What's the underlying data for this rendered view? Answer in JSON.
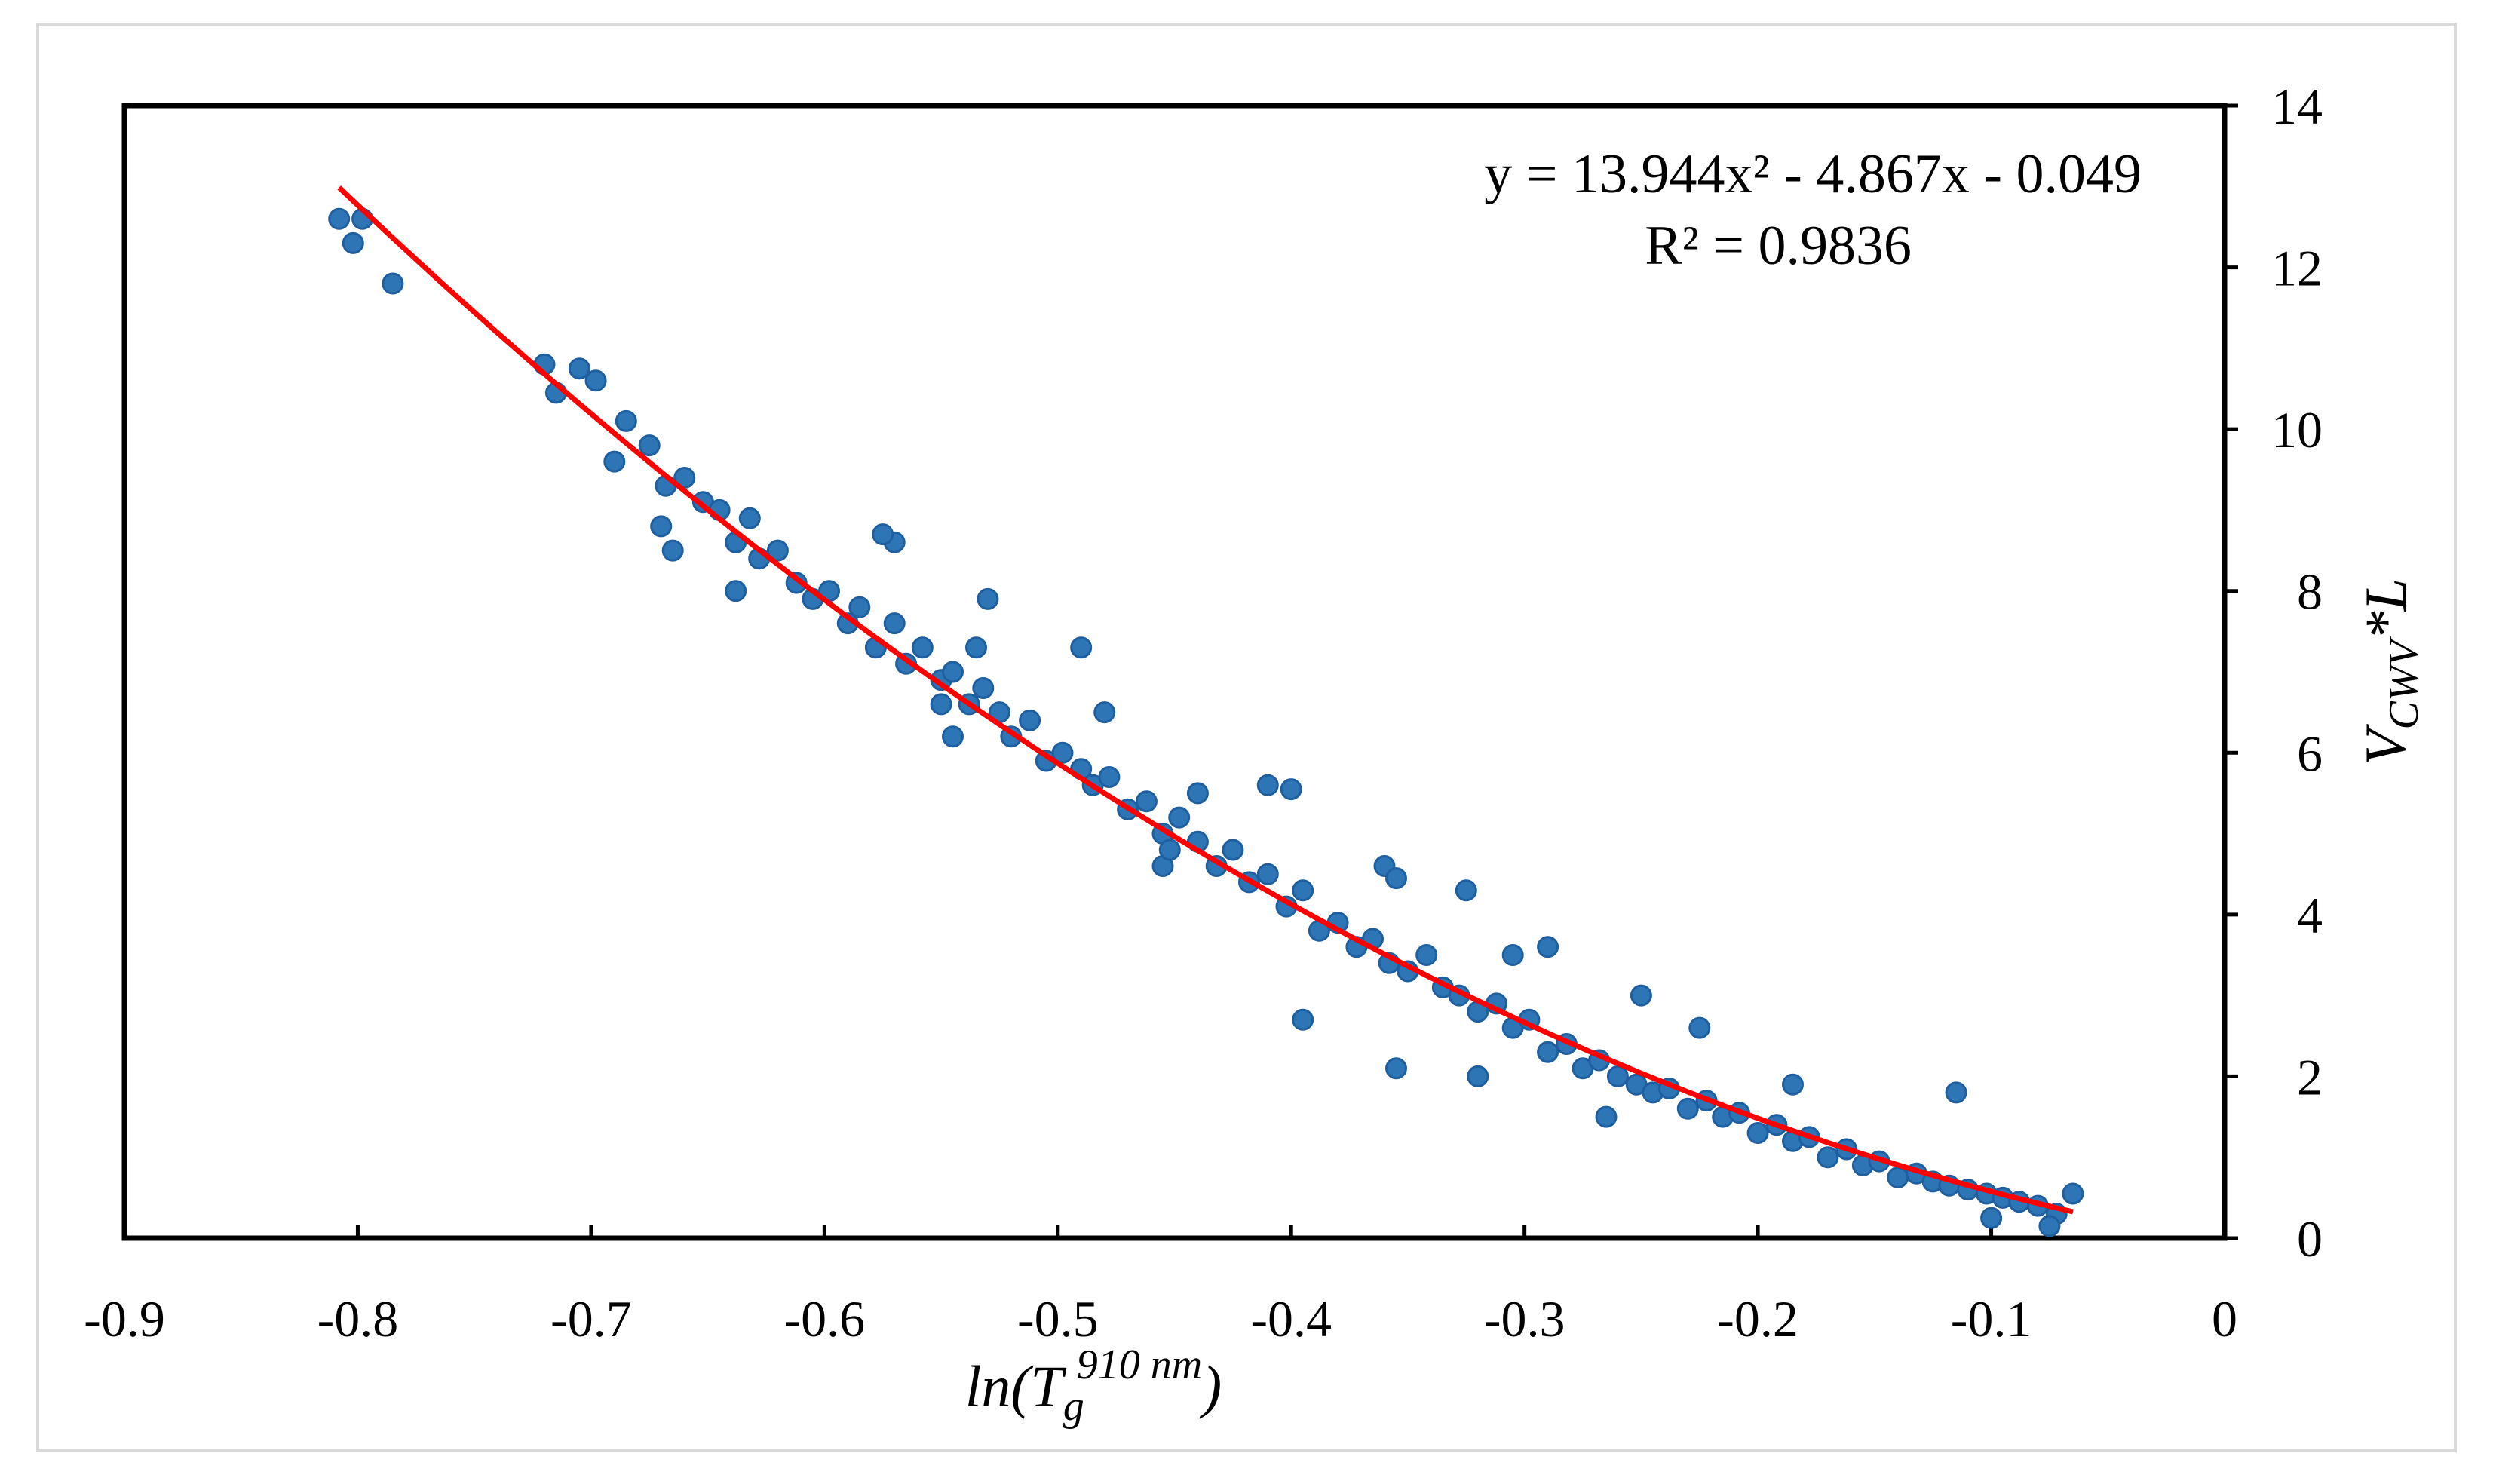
{
  "chart_data": {
    "type": "scatter",
    "title": "",
    "xlabel": "ln(T_g^910 nm)",
    "xlabel_parts": {
      "prefix": "ln(T",
      "subscript": "g",
      "superscript": "910 nm",
      "suffix": ")"
    },
    "ylabel": "V_CWV*L",
    "ylabel_parts": {
      "main": "V",
      "subscript": "CWV",
      "suffix": "*L"
    },
    "xlim": [
      -0.9,
      0
    ],
    "ylim": [
      0,
      14
    ],
    "x_ticks": [
      -0.9,
      -0.8,
      -0.7,
      -0.6,
      -0.5,
      -0.4,
      -0.3,
      -0.2,
      -0.1,
      0
    ],
    "x_tick_labels": [
      "-0.9",
      "-0.8",
      "-0.7",
      "-0.6",
      "-0.5",
      "-0.4",
      "-0.3",
      "-0.2",
      "-0.1",
      "0"
    ],
    "y_ticks": [
      0,
      2,
      4,
      6,
      8,
      10,
      12,
      14
    ],
    "y_tick_labels": [
      "0",
      "2",
      "4",
      "6",
      "8",
      "10",
      "12",
      "14"
    ],
    "y_axis_side": "right",
    "grid": false,
    "legend": "none",
    "series": [
      {
        "name": "observations",
        "kind": "scatter",
        "color": "#2E75B6",
        "edge_color": "#1F5FA0",
        "x": [
          -0.808,
          -0.802,
          -0.798,
          -0.785,
          -0.72,
          -0.715,
          -0.705,
          -0.698,
          -0.69,
          -0.685,
          -0.675,
          -0.668,
          -0.66,
          -0.652,
          -0.645,
          -0.638,
          -0.632,
          -0.628,
          -0.62,
          -0.612,
          -0.605,
          -0.598,
          -0.59,
          -0.585,
          -0.578,
          -0.57,
          -0.565,
          -0.558,
          -0.55,
          -0.545,
          -0.538,
          -0.532,
          -0.525,
          -0.52,
          -0.512,
          -0.505,
          -0.498,
          -0.49,
          -0.485,
          -0.478,
          -0.47,
          -0.462,
          -0.455,
          -0.448,
          -0.44,
          -0.432,
          -0.425,
          -0.418,
          -0.41,
          -0.402,
          -0.395,
          -0.388,
          -0.38,
          -0.372,
          -0.365,
          -0.358,
          -0.35,
          -0.342,
          -0.335,
          -0.328,
          -0.32,
          -0.312,
          -0.305,
          -0.298,
          -0.29,
          -0.282,
          -0.275,
          -0.268,
          -0.26,
          -0.252,
          -0.245,
          -0.238,
          -0.23,
          -0.222,
          -0.215,
          -0.208,
          -0.2,
          -0.192,
          -0.185,
          -0.178,
          -0.17,
          -0.162,
          -0.155,
          -0.148,
          -0.14,
          -0.132,
          -0.125,
          -0.118,
          -0.11,
          -0.102,
          -0.095,
          -0.088,
          -0.08,
          -0.072,
          -0.065,
          -0.57,
          -0.575,
          -0.535,
          -0.53,
          -0.49,
          -0.48,
          -0.41,
          -0.4,
          -0.36,
          -0.355,
          -0.325,
          -0.305,
          -0.29,
          -0.25,
          -0.225,
          -0.185,
          -0.115,
          -0.395,
          -0.355,
          -0.55,
          -0.545,
          -0.455,
          -0.452,
          -0.44,
          -0.638,
          -0.665,
          -0.67,
          -0.32,
          -0.265,
          -0.1,
          -0.075
        ],
        "y": [
          12.6,
          12.3,
          12.6,
          11.8,
          10.8,
          10.45,
          10.75,
          10.6,
          9.6,
          10.1,
          9.8,
          9.3,
          9.4,
          9.1,
          9.0,
          8.6,
          8.9,
          8.4,
          8.5,
          8.1,
          7.9,
          8.0,
          7.6,
          7.8,
          7.3,
          7.6,
          7.1,
          7.3,
          6.9,
          7.0,
          6.6,
          6.8,
          6.5,
          6.2,
          6.4,
          5.9,
          6.0,
          5.8,
          5.6,
          5.7,
          5.3,
          5.4,
          5.0,
          5.2,
          4.9,
          4.6,
          4.8,
          4.4,
          4.5,
          4.1,
          4.3,
          3.8,
          3.9,
          3.6,
          3.7,
          3.4,
          3.3,
          3.5,
          3.1,
          3.0,
          2.8,
          2.9,
          2.6,
          2.7,
          2.3,
          2.4,
          2.1,
          2.2,
          2.0,
          1.9,
          1.8,
          1.85,
          1.6,
          1.7,
          1.5,
          1.55,
          1.3,
          1.4,
          1.2,
          1.25,
          1.0,
          1.1,
          0.9,
          0.95,
          0.75,
          0.8,
          0.7,
          0.65,
          0.6,
          0.55,
          0.5,
          0.45,
          0.4,
          0.3,
          0.55,
          8.6,
          8.7,
          7.3,
          7.9,
          7.3,
          6.5,
          5.6,
          5.55,
          4.6,
          4.45,
          4.3,
          3.5,
          3.6,
          3.0,
          2.6,
          1.9,
          1.8,
          2.7,
          2.1,
          6.6,
          6.2,
          4.6,
          4.8,
          5.5,
          8.0,
          8.5,
          8.8,
          2.0,
          1.5,
          0.25,
          0.15
        ]
      },
      {
        "name": "fit",
        "kind": "line",
        "color": "#FF0000",
        "x_range": [
          -0.808,
          -0.065
        ],
        "coefficients": {
          "a": 13.944,
          "b": -4.867,
          "c": -0.049
        }
      }
    ],
    "annotations": {
      "equation": "y = 13.944x² - 4.867x - 0.049",
      "r_squared": "R² = 0.9836"
    }
  }
}
